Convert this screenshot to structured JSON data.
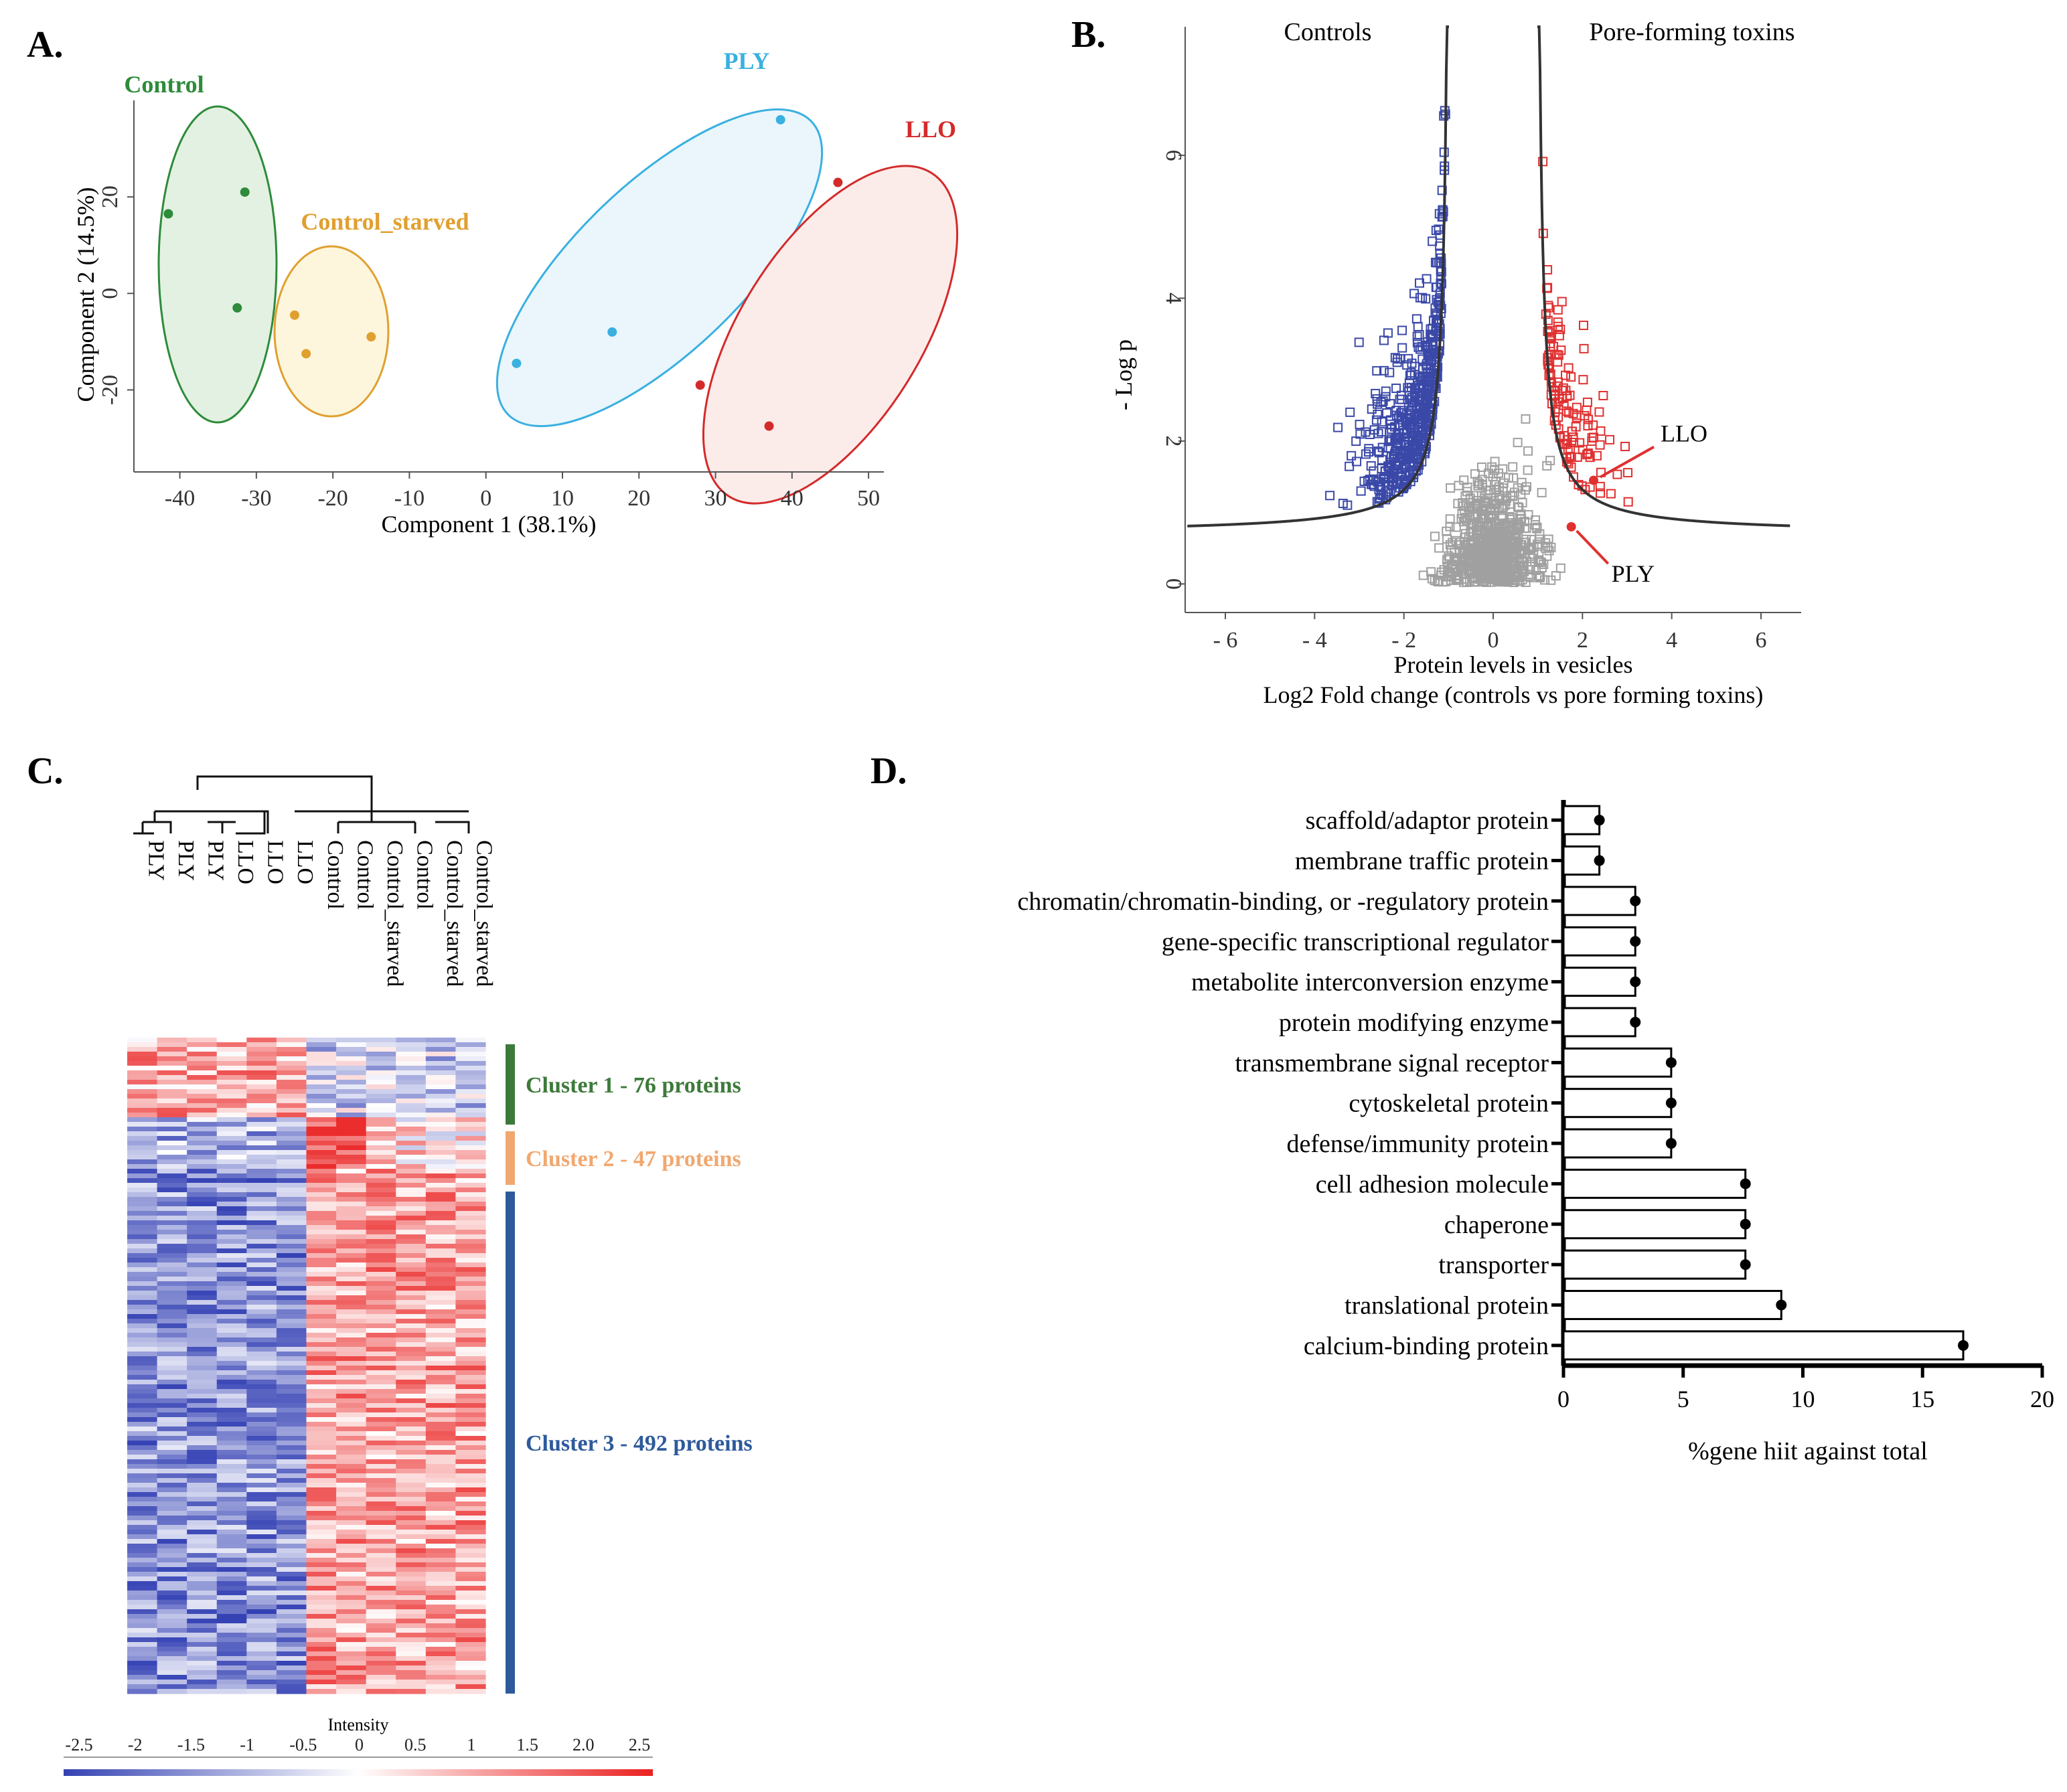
{
  "panel_labels": {
    "a": "A.",
    "b": "B.",
    "c": "C.",
    "d": "D."
  },
  "colors": {
    "control": "#2e8b3a",
    "control_starved": "#e0a030",
    "ply": "#3ab0e0",
    "llo": "#d42a2a",
    "volcano_blue": "#3a48a8",
    "volcano_red": "#e03030",
    "volcano_grey": "#a0a0a0",
    "cluster1": "#3d7a3a",
    "cluster2": "#f0a870",
    "cluster3": "#2e5a9c"
  },
  "chart_data": [
    {
      "id": "pca",
      "type": "scatter",
      "xlabel": "Component 1 (38.1%)",
      "ylabel": "Component 2 (14.5%)",
      "xlim": [
        -46,
        52
      ],
      "ylim": [
        -37,
        40
      ],
      "xticks": [
        -40,
        -30,
        -20,
        -10,
        0,
        10,
        20,
        30,
        40,
        50
      ],
      "yticks": [
        -20,
        0,
        20
      ],
      "series": [
        {
          "name": "Control",
          "points": [
            [
              -41.5,
              16.5
            ],
            [
              -31.5,
              21
            ],
            [
              -32.5,
              -3
            ]
          ]
        },
        {
          "name": "Control_starved",
          "points": [
            [
              -25,
              -4.5
            ],
            [
              -23.5,
              -12.5
            ],
            [
              -15,
              -9
            ]
          ]
        },
        {
          "name": "PLY",
          "points": [
            [
              4,
              -14.5
            ],
            [
              16.5,
              -8
            ],
            [
              38.5,
              36
            ]
          ]
        },
        {
          "name": "LLO",
          "points": [
            [
              28,
              -19
            ],
            [
              37,
              -27.5
            ],
            [
              46,
              23
            ]
          ]
        }
      ]
    },
    {
      "id": "volcano",
      "type": "scatter",
      "title_left": "Controls",
      "title_right": "Pore-forming toxins",
      "xlabel": "Protein levels in vesicles",
      "xlabel2": "Log2 Fold change (controls vs pore forming toxins)",
      "ylabel": "- Log p",
      "xlim": [
        -6.9,
        6.9
      ],
      "ylim": [
        -0.4,
        7.8
      ],
      "xticks": [
        -6,
        -4,
        -2,
        0,
        2,
        4,
        6
      ],
      "yticks": [
        0,
        2,
        4,
        6
      ],
      "annotations": [
        {
          "label": "LLO",
          "x": 2.25,
          "y": 1.45
        },
        {
          "label": "PLY",
          "x": 1.75,
          "y": 0.8
        }
      ]
    },
    {
      "id": "heatmap",
      "type": "heatmap",
      "columns": [
        "PLY",
        "PLY",
        "PLY",
        "LLO",
        "LLO",
        "LLO",
        "Control",
        "Control",
        "Control_starved",
        "Control",
        "Control_starved",
        "Control_starved"
      ],
      "clusters": [
        {
          "label": "Cluster 1 - 76 proteins",
          "size": 76
        },
        {
          "label": "Cluster 2 - 47 proteins",
          "size": 47
        },
        {
          "label": "Cluster 3 - 492 proteins",
          "size": 492
        }
      ],
      "scale_title": "Intensity",
      "scale_ticks": [
        "-2.5",
        "-2",
        "-1.5",
        "-1",
        "-0.5",
        "0",
        "0.5",
        "1",
        "1.5",
        "2.0",
        "2.5"
      ],
      "scale_range": [
        -2.5,
        2.5
      ]
    },
    {
      "id": "go_bar",
      "type": "bar",
      "orientation": "horizontal",
      "xlabel": "%gene hiit against total",
      "xlim": [
        0,
        20
      ],
      "xticks": [
        0,
        5,
        10,
        15,
        20
      ],
      "categories": [
        "scaffold/adaptor protein",
        "membrane traffic protein",
        "chromatin/chromatin-binding, or -regulatory protein",
        "gene-specific transcriptional regulator",
        "metabolite interconversion enzyme",
        "protein modifying enzyme",
        "transmembrane signal receptor",
        "cytoskeletal protein",
        "defense/immunity protein",
        "cell adhesion molecule",
        "chaperone",
        "transporter",
        "translational protein",
        "calcium-binding protein"
      ],
      "values": [
        1.5,
        1.5,
        3.0,
        3.0,
        3.0,
        3.0,
        4.5,
        4.5,
        4.5,
        7.6,
        7.6,
        7.6,
        9.1,
        16.7
      ]
    }
  ]
}
